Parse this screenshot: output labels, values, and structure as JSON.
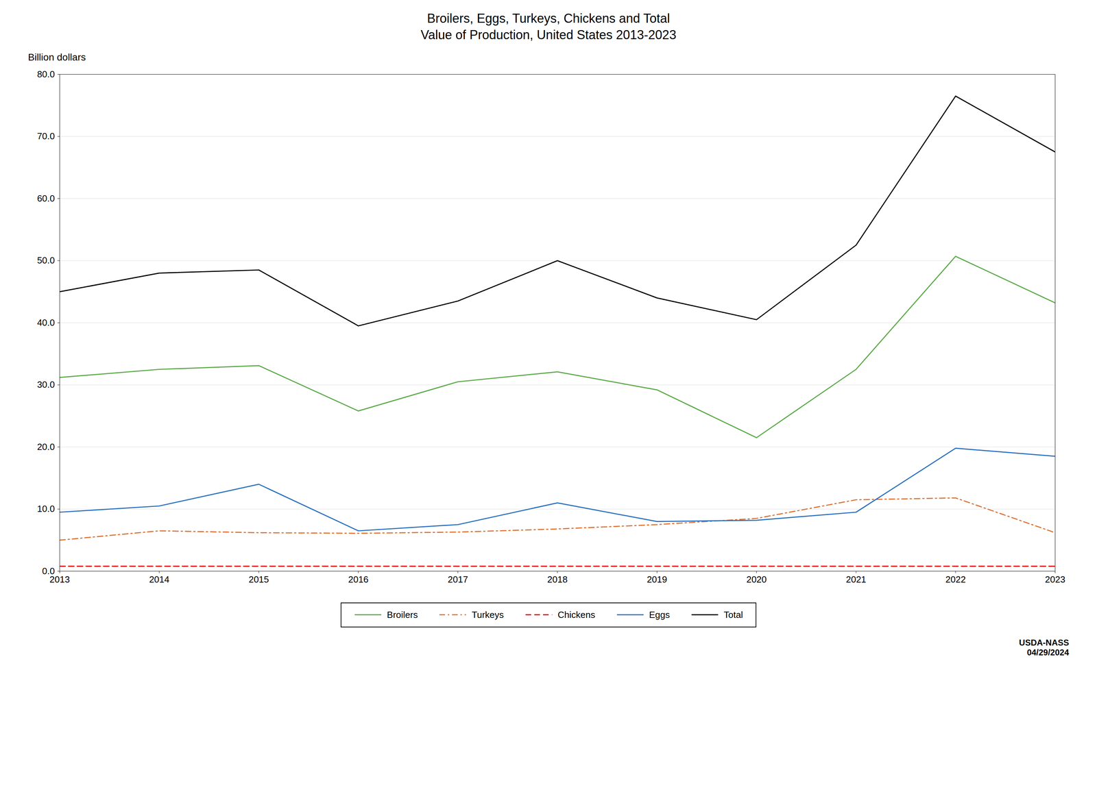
{
  "chart_data": {
    "type": "line",
    "title": "Broilers, Eggs, Turkeys, Chickens and Total\nValue of Production, United States 2013-2023",
    "y_label": "Billion dollars",
    "annotations": [
      "USDA-NASS\n04/29/2024"
    ],
    "x": [
      2013,
      2014,
      2015,
      2016,
      2017,
      2018,
      2019,
      2020,
      2021,
      2022,
      2023
    ],
    "series": [
      {
        "name": "Broilers",
        "color": "#5aaa46",
        "line_style": "solid",
        "values": [
          31.2,
          32.5,
          33.1,
          25.8,
          30.5,
          32.1,
          29.2,
          21.5,
          32.5,
          50.7,
          43.2
        ]
      },
      {
        "name": "Turkeys",
        "color": "#e07030",
        "line_style": "dashdot",
        "values": [
          5.0,
          6.5,
          6.2,
          6.1,
          6.3,
          6.8,
          7.5,
          8.5,
          11.5,
          11.8,
          6.2
        ]
      },
      {
        "name": "Chickens",
        "color": "#dd0000",
        "line_style": "dashed",
        "values": [
          0.8,
          0.8,
          0.8,
          0.8,
          0.8,
          0.8,
          0.8,
          0.8,
          0.8,
          0.8,
          0.8
        ]
      },
      {
        "name": "Eggs",
        "color": "#2970c0",
        "line_style": "solid",
        "values": [
          9.5,
          10.5,
          14.0,
          6.5,
          7.5,
          11.0,
          8.0,
          8.2,
          9.5,
          19.8,
          18.5
        ]
      },
      {
        "name": "Total",
        "color": "#000000",
        "line_style": "solid",
        "values": [
          45.0,
          48.0,
          48.5,
          39.5,
          43.5,
          50.0,
          44.0,
          40.5,
          52.5,
          76.5,
          67.5
        ]
      }
    ],
    "xlim": [
      2013,
      2023
    ],
    "xticks": [
      2013,
      2014,
      2015,
      2016,
      2017,
      2018,
      2019,
      2020,
      2021,
      2022,
      2023
    ],
    "ylim": [
      0,
      80
    ],
    "yticks": [
      {
        "value": 0,
        "label": "0.0"
      },
      {
        "value": 10,
        "label": "10.0"
      },
      {
        "value": 20,
        "label": "20.0"
      },
      {
        "value": 30,
        "label": "30.0"
      },
      {
        "value": 40,
        "label": "40.0"
      },
      {
        "value": 50,
        "label": "50.0"
      },
      {
        "value": 60,
        "label": "60.0"
      },
      {
        "value": 70,
        "label": "70.0"
      },
      {
        "value": 80,
        "label": "80.0"
      }
    ],
    "grid": true,
    "legend": "bottom"
  }
}
